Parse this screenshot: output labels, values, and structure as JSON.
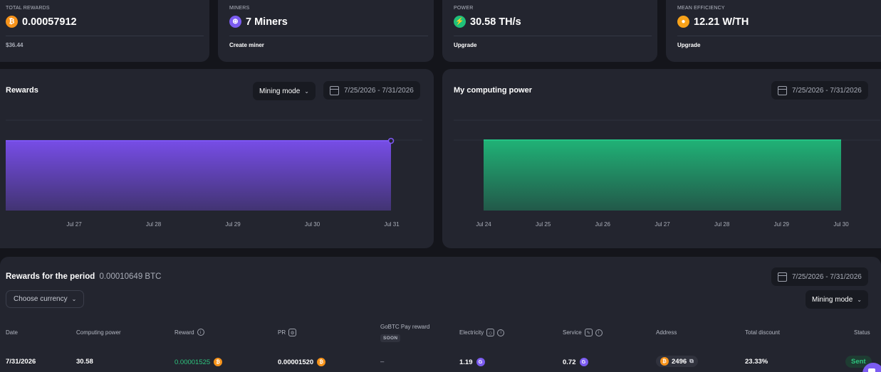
{
  "stats": [
    {
      "label": "TOTAL REWARDS",
      "value": "0.00057912",
      "foot": "$36.44",
      "icon": "bitcoin-icon"
    },
    {
      "label": "MINERS",
      "value": "7 Miners",
      "foot": "Create miner",
      "icon": "miner-icon"
    },
    {
      "label": "POWER",
      "value": "30.58 TH/s",
      "foot": "Upgrade",
      "icon": "lightning-icon"
    },
    {
      "label": "MEAN EFFICIENCY",
      "value": "12.21 W/TH",
      "foot": "Upgrade",
      "icon": "bulb-icon"
    }
  ],
  "rewards_chart": {
    "title": "Rewards",
    "mode": "Mining mode",
    "date_range": "7/25/2026 - 7/31/2026"
  },
  "power_chart": {
    "title": "My computing power",
    "date_range": "7/25/2026 - 7/31/2026"
  },
  "chart_data": [
    {
      "type": "area",
      "x": [
        "Jul 27",
        "Jul 28",
        "Jul 29",
        "Jul 30",
        "Jul 31"
      ],
      "values": [
        1,
        1,
        1,
        1,
        1
      ],
      "color": "#7b4ff0"
    },
    {
      "type": "area",
      "x": [
        "Jul 24",
        "Jul 25",
        "Jul 26",
        "Jul 27",
        "Jul 28",
        "Jul 29",
        "Jul 30"
      ],
      "values": [
        1,
        1,
        1,
        1,
        1,
        1,
        1
      ],
      "color": "#20b97a"
    }
  ],
  "period": {
    "title": "Rewards for the period",
    "value": "0.00010649 BTC",
    "currency_button": "Choose currency",
    "date_range": "7/25/2026 - 7/31/2026",
    "mode": "Mining mode"
  },
  "table": {
    "headers": {
      "date": "Date",
      "computing_power": "Computing power",
      "reward": "Reward",
      "pr": "PR",
      "gobtc": "GoBTC Pay reward",
      "soon": "SOON",
      "electricity": "Electricity",
      "service": "Service",
      "address": "Address",
      "total_discount": "Total discount",
      "status": "Status"
    },
    "row": {
      "date": "7/31/2026",
      "computing_power": "30.58",
      "reward": "0.00001525",
      "pr": "0.00001520",
      "gobtc": "–",
      "electricity": "1.19",
      "service": "0.72",
      "address": "2496",
      "total_discount": "23.33%",
      "status": "Sent"
    }
  },
  "colors": {
    "background": "#14151b",
    "card": "#23252f",
    "accent_purple": "#7b5cf0",
    "accent_green": "#2ec47e",
    "bitcoin": "#f7931a"
  }
}
